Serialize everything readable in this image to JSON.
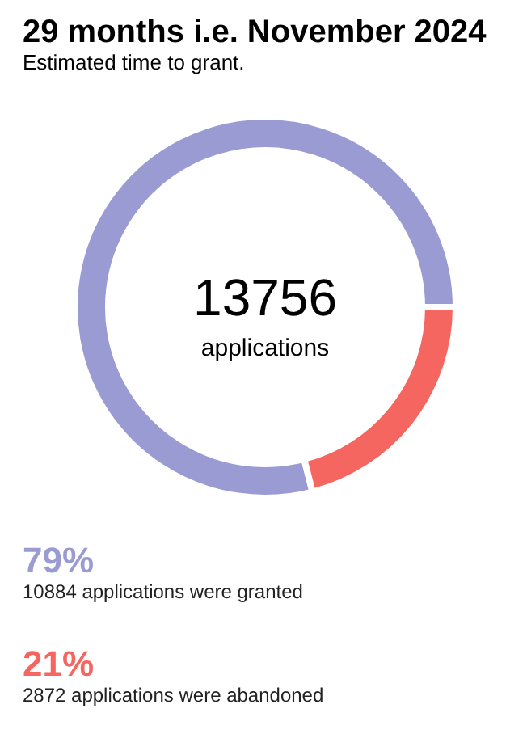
{
  "chart_data": {
    "type": "donut",
    "title": "29 months i.e. November 2024",
    "subtitle": "Estimated time to grant.",
    "categories": [
      null,
      null
    ],
    "values": [
      79,
      21
    ],
    "colors": [
      "#9b9bd3",
      "#f4665f"
    ],
    "annotations": [
      "13756",
      "applications",
      "79%",
      "10884 applications were granted",
      "21%",
      "2872 applications were abandoned"
    ]
  }
}
